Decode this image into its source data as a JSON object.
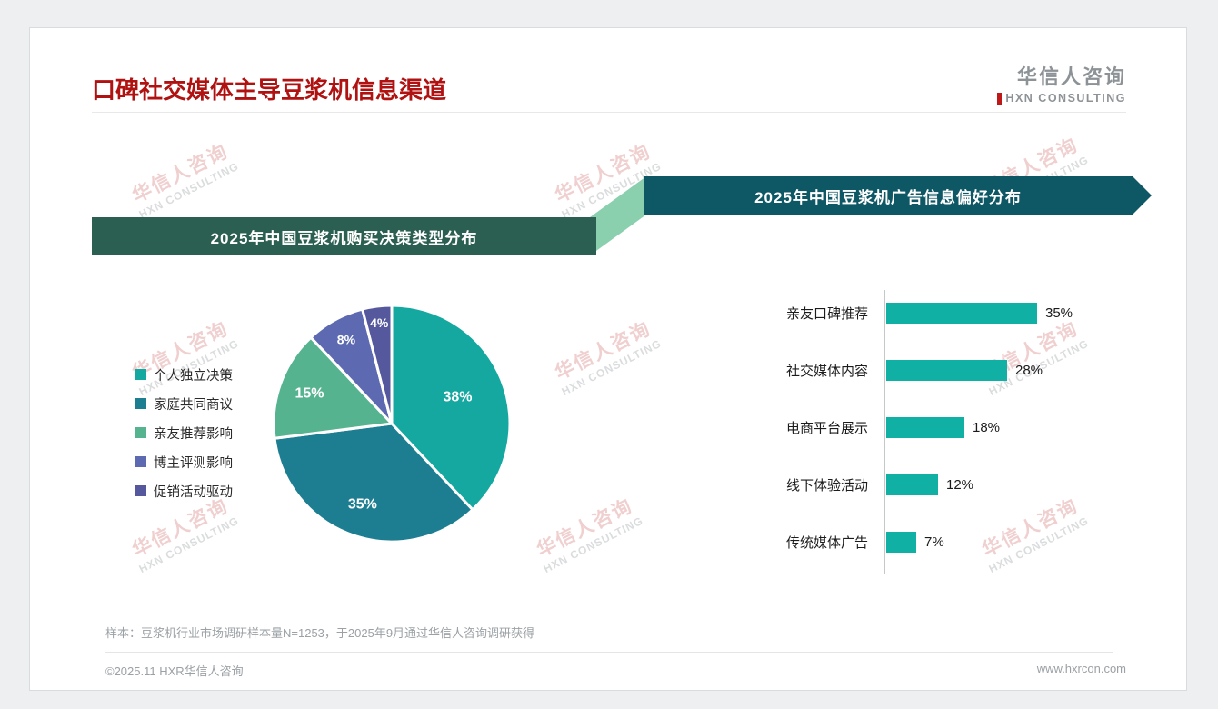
{
  "header": {
    "title": "口碑社交媒体主导豆浆机信息渠道",
    "logo_cn": "华信人咨询",
    "logo_en": "HXN CONSULTING"
  },
  "watermark": {
    "cn": "华信人咨询",
    "en": "HXN CONSULTING"
  },
  "chart_data": [
    {
      "type": "pie",
      "title": "2025年中国豆浆机购买决策类型分布",
      "labels": [
        "个人独立决策",
        "家庭共同商议",
        "亲友推荐影响",
        "博主评测影响",
        "促销活动驱动"
      ],
      "values": [
        38,
        35,
        15,
        8,
        4
      ],
      "unit": "%",
      "colors": [
        "#14a8a0",
        "#1d7e92",
        "#56b390",
        "#5d6ab2",
        "#55589c"
      ],
      "legend_position": "left",
      "start_angle_deg": 0,
      "direction": "clockwise"
    },
    {
      "type": "bar",
      "orientation": "horizontal",
      "title": "2025年中国豆浆机广告信息偏好分布",
      "categories": [
        "亲友口碑推荐",
        "社交媒体内容",
        "电商平台展示",
        "线下体验活动",
        "传统媒体广告"
      ],
      "values": [
        35,
        28,
        18,
        12,
        7
      ],
      "unit": "%",
      "bar_color": "#10b0a4",
      "xlim": [
        0,
        40
      ],
      "value_labels": true
    }
  ],
  "notes": {
    "sample": "样本：豆浆机行业市场调研样本量N=1253，于2025年9月通过华信人咨询调研获得"
  },
  "footer": {
    "copyright": "©2025.11 HXR华信人咨询",
    "website": "www.hxrcon.com"
  },
  "colors": {
    "title": "#b01212",
    "banner_left": "#2b5f51",
    "banner_right": "#0e5765",
    "connector": "#8ad0ae",
    "accent_red": "#c01818"
  }
}
